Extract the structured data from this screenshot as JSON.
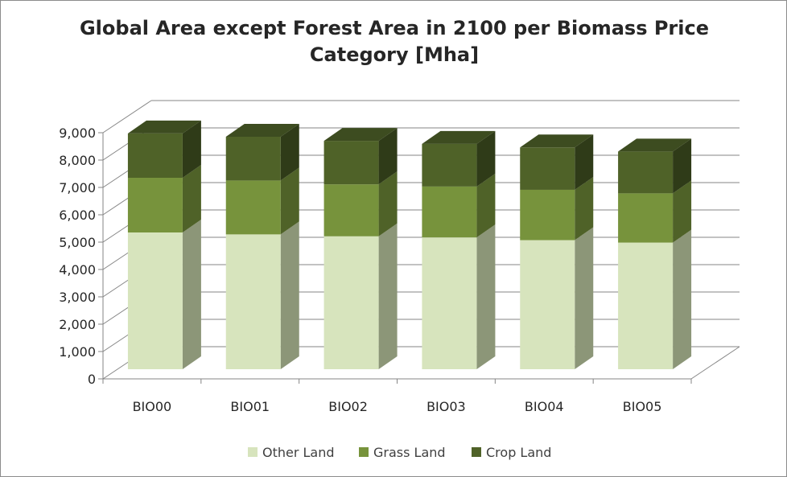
{
  "chart_data": {
    "type": "bar",
    "stacked": true,
    "three_d": true,
    "title_lines": [
      "Global Area except Forest Area in 2100 per Biomass Price",
      "Category [Mha]"
    ],
    "xlabel": "",
    "ylabel": "",
    "ylim": [
      0,
      9000
    ],
    "ytick_step": 1000,
    "ytick_labels": [
      "0",
      "1,000",
      "2,000",
      "3,000",
      "4,000",
      "5,000",
      "6,000",
      "7,000",
      "8,000",
      "9,000"
    ],
    "categories": [
      "BIO00",
      "BIO01",
      "BIO02",
      "BIO03",
      "BIO04",
      "BIO05"
    ],
    "series": [
      {
        "name": "Other Land",
        "values": [
          5000,
          4930,
          4860,
          4820,
          4720,
          4630
        ]
      },
      {
        "name": "Grass Land",
        "values": [
          2000,
          1970,
          1900,
          1860,
          1840,
          1800
        ]
      },
      {
        "name": "Crop Land",
        "values": [
          1620,
          1600,
          1590,
          1560,
          1550,
          1530
        ]
      }
    ],
    "grid": true,
    "legend_position": "bottom",
    "colors": {
      "Other Land": {
        "front": "#d7e4bd",
        "side": "#8c9678",
        "top": "#e6eed4"
      },
      "Grass Land": {
        "front": "#77933c",
        "side": "#4f6228",
        "top": "#8fab52"
      },
      "Crop Land": {
        "front": "#4f6228",
        "side": "#2f3b18",
        "top": "#3d4c20"
      },
      "axis": "#868686",
      "grid": "#868686"
    }
  }
}
